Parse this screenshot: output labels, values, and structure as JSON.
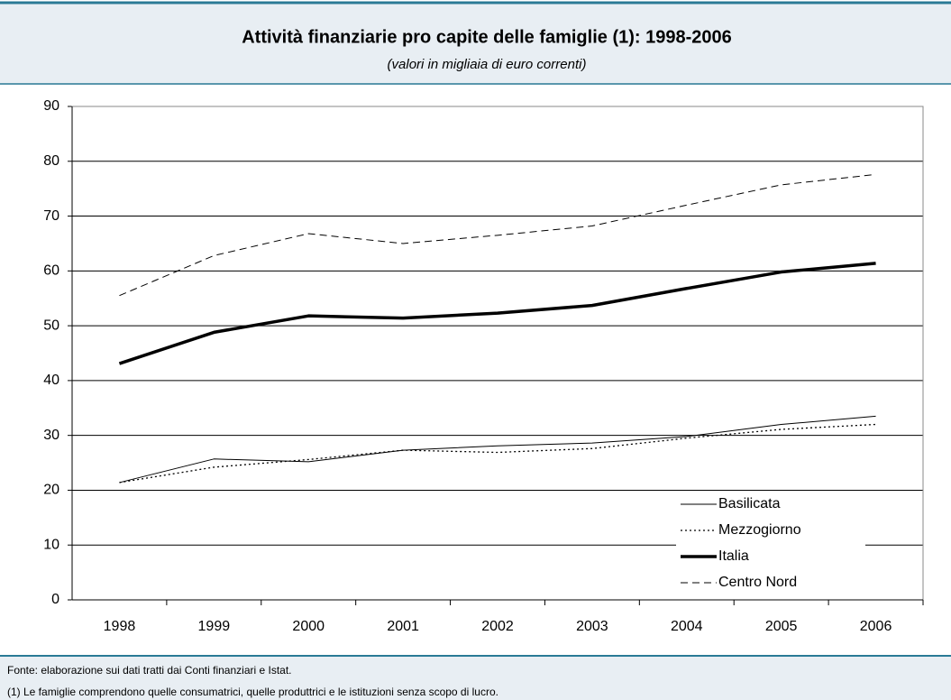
{
  "chart_data": {
    "type": "line",
    "title": "Attività finanziarie pro capite delle famiglie (1): 1998-2006",
    "subtitle": "(valori in migliaia di euro correnti)",
    "categories": [
      "1998",
      "1999",
      "2000",
      "2001",
      "2002",
      "2003",
      "2004",
      "2005",
      "2006"
    ],
    "series": [
      {
        "name": "Basilicata",
        "color": "#000000",
        "dash": "solid",
        "width": 1,
        "values": [
          21.4,
          25.7,
          25.2,
          27.3,
          28.1,
          28.6,
          29.8,
          32.0,
          33.5
        ]
      },
      {
        "name": "Mezzogiorno",
        "color": "#000000",
        "dash": "dotted",
        "width": 1.3,
        "values": [
          21.4,
          24.2,
          25.6,
          27.3,
          26.9,
          27.6,
          29.5,
          31.1,
          32.0
        ]
      },
      {
        "name": "Italia",
        "color": "#000000",
        "dash": "solid",
        "width": 3.5,
        "values": [
          43.1,
          48.8,
          51.8,
          51.4,
          52.3,
          53.7,
          56.8,
          59.8,
          61.4
        ]
      },
      {
        "name": "Centro Nord",
        "color": "#000000",
        "dash": "dashed",
        "width": 1,
        "values": [
          55.5,
          62.8,
          66.8,
          65.0,
          66.5,
          68.2,
          72.0,
          75.7,
          77.6
        ]
      }
    ],
    "ylim": [
      0,
      90
    ],
    "yticks": [
      0,
      10,
      20,
      30,
      40,
      50,
      60,
      70,
      80,
      90
    ],
    "grid": true,
    "legend": "bottom-right",
    "notes": [
      "Fonte: elaborazione sui dati tratti dai Conti finanziari e Istat.",
      "(1) Le famiglie comprendono quelle consumatrici, quelle produttrici e le istituzioni senza scopo di lucro."
    ]
  }
}
